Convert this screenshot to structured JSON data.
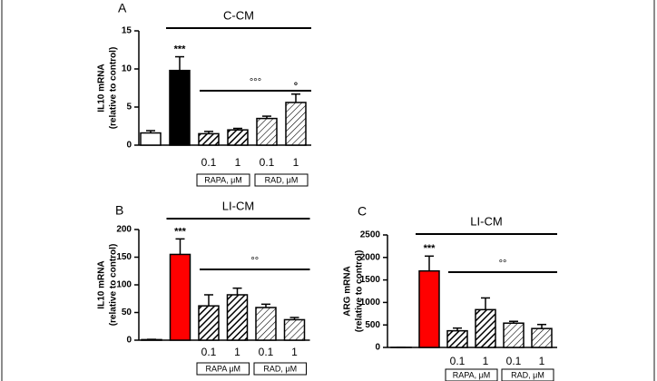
{
  "chart_data": [
    {
      "type": "bar",
      "panel": "A",
      "condition": "C-CM",
      "ylabel": [
        "IL10 mRNA",
        "(relative to control)"
      ],
      "categories": [
        null,
        null,
        "0.1",
        "1",
        "0.1",
        "1"
      ],
      "values": [
        1.6,
        9.8,
        1.5,
        2.0,
        3.5,
        5.6
      ],
      "errors": [
        0.3,
        1.8,
        0.3,
        0.2,
        0.3,
        1.1
      ],
      "colors": [
        "#ffffff",
        "#000000",
        "#000000",
        "#000000",
        "#000000",
        "#000000"
      ],
      "patterns": [
        "solid",
        "solid",
        "hatch-dense",
        "hatch-dense",
        "hatch-sparse",
        "hatch-sparse"
      ],
      "significance": [
        null,
        "***",
        null,
        null,
        null,
        "°"
      ],
      "group_significance": "°°°",
      "groups": [
        "RAPA, μM",
        "RAD, μM"
      ],
      "ylim": [
        0,
        15
      ],
      "yticks": [
        0,
        5,
        10,
        15
      ]
    },
    {
      "type": "bar",
      "panel": "B",
      "condition": "LI-CM",
      "ylabel": [
        "IL10 mRNA",
        "(relative to control)"
      ],
      "categories": [
        null,
        null,
        "0.1",
        "1",
        "0.1",
        "1"
      ],
      "values": [
        1,
        155,
        62,
        82,
        59,
        37
      ],
      "errors": [
        0.5,
        28,
        20,
        12,
        6,
        4
      ],
      "colors": [
        "#ffffff",
        "#ff0000",
        "#000000",
        "#000000",
        "#000000",
        "#000000"
      ],
      "patterns": [
        "solid",
        "solid",
        "hatch-dense",
        "hatch-dense",
        "hatch-sparse",
        "hatch-sparse"
      ],
      "significance": [
        null,
        "***",
        null,
        null,
        null,
        null
      ],
      "group_significance": "°°",
      "groups": [
        "RAPA μM",
        "RAD, μM"
      ],
      "ylim": [
        0,
        200
      ],
      "yticks": [
        0,
        50,
        100,
        150,
        200
      ]
    },
    {
      "type": "bar",
      "panel": "C",
      "condition": "LI-CM",
      "ylabel": [
        "ARG mRNA",
        "(relative to control)"
      ],
      "categories": [
        null,
        null,
        "0.1",
        "1",
        "0.1",
        "1"
      ],
      "values": [
        1,
        1700,
        370,
        840,
        540,
        420
      ],
      "errors": [
        0.5,
        330,
        60,
        260,
        40,
        90
      ],
      "colors": [
        "#ffffff",
        "#ff0000",
        "#000000",
        "#000000",
        "#000000",
        "#000000"
      ],
      "patterns": [
        "solid",
        "solid",
        "hatch-dense",
        "hatch-dense",
        "hatch-sparse",
        "hatch-sparse"
      ],
      "significance": [
        null,
        "***",
        null,
        null,
        null,
        null
      ],
      "group_significance": "°°",
      "groups": [
        "RAPA, μM",
        "RAD, μM"
      ],
      "ylim": [
        0,
        2500
      ],
      "yticks": [
        0,
        500,
        1000,
        1500,
        2000,
        2500
      ]
    }
  ]
}
